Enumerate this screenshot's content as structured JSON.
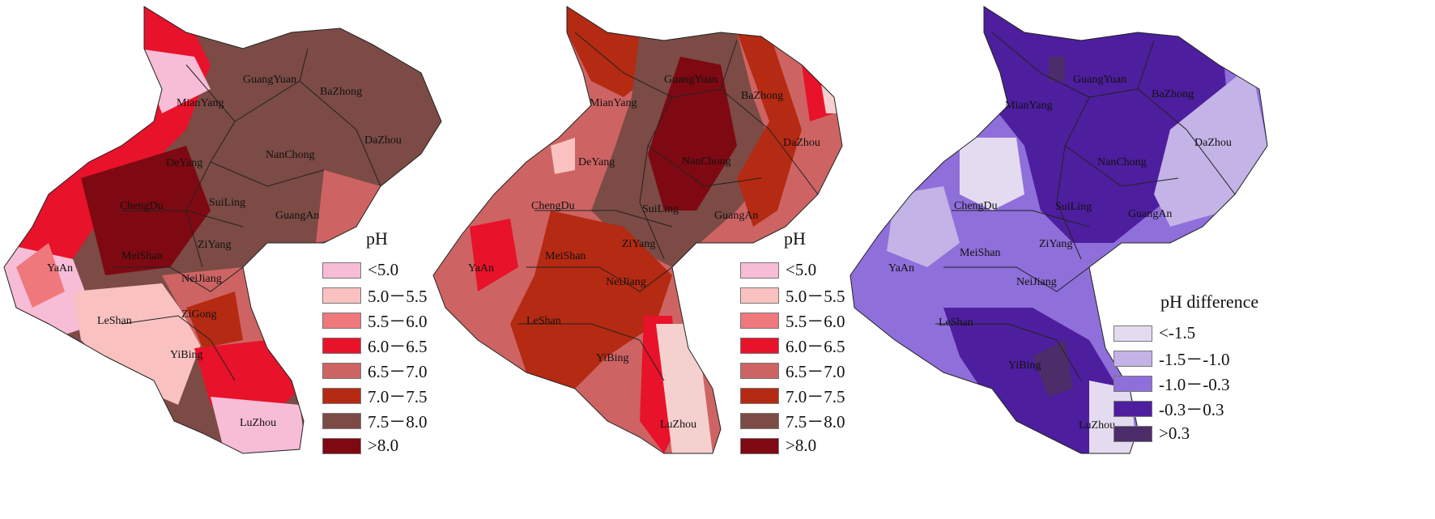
{
  "panels": [
    {
      "legend_title": "pH",
      "legend": [
        {
          "label": "<5.0",
          "color": "#f7bcd6"
        },
        {
          "label": "5.0－5.5",
          "color": "#f9c2c0"
        },
        {
          "label": "5.5－6.0",
          "color": "#ef787c"
        },
        {
          "label": "6.0－6.5",
          "color": "#e8122a"
        },
        {
          "label": "6.5－7.0",
          "color": "#cd6463"
        },
        {
          "label": "7.0－7.5",
          "color": "#b52a12"
        },
        {
          "label": "7.5－8.0",
          "color": "#7c4b45"
        },
        {
          "label": ">8.0",
          "color": "#7e0912"
        }
      ],
      "cities": [
        "GuangYuan",
        "BaZhong",
        "MianYang",
        "DaZhou",
        "NanChong",
        "DeYang",
        "ChengDu",
        "SuiLing",
        "GuangAn",
        "ZiYang",
        "MeiShan",
        "YaAn",
        "NeiJiang",
        "LeShan",
        "ZiGong",
        "YiBing",
        "LuZhou"
      ]
    },
    {
      "legend_title": "pH",
      "legend": [
        {
          "label": "<5.0",
          "color": "#f7bcd6"
        },
        {
          "label": "5.0－5.5",
          "color": "#f9c2c0"
        },
        {
          "label": "5.5－6.0",
          "color": "#ef787c"
        },
        {
          "label": "6.0－6.5",
          "color": "#e8122a"
        },
        {
          "label": "6.5－7.0",
          "color": "#cd6463"
        },
        {
          "label": "7.0－7.5",
          "color": "#b52a12"
        },
        {
          "label": "7.5－8.0",
          "color": "#7c4b45"
        },
        {
          "label": ">8.0",
          "color": "#7e0912"
        }
      ],
      "cities": [
        "GuangYuan",
        "BaZhong",
        "MianYang",
        "DaZhou",
        "NanChong",
        "DeYang",
        "ChengDu",
        "SuiLing",
        "GuangAn",
        "ZiYang",
        "MeiShan",
        "YaAn",
        "NeiJiang",
        "LeShan",
        "YiBing",
        "LuZhou"
      ]
    },
    {
      "legend_title": "pH  difference",
      "legend": [
        {
          "label": "<-1.5",
          "color": "#e4dbf0"
        },
        {
          "label": "-1.5－-1.0",
          "color": "#c3b3e6"
        },
        {
          "label": "-1.0－-0.3",
          "color": "#8f6fda"
        },
        {
          "label": "-0.3－0.3",
          "color": "#4d1e9d"
        },
        {
          "label": ">0.3",
          "color": "#4c2d69"
        }
      ],
      "cities": [
        "GuangYuan",
        "BaZhong",
        "MianYang",
        "DaZhou",
        "NanChong",
        "ChengDu",
        "SuiLing",
        "GuangAn",
        "ZiYang",
        "MeiShan",
        "YaAn",
        "NeiJiang",
        "LeShan",
        "YiBing",
        "LuZhou"
      ]
    }
  ]
}
